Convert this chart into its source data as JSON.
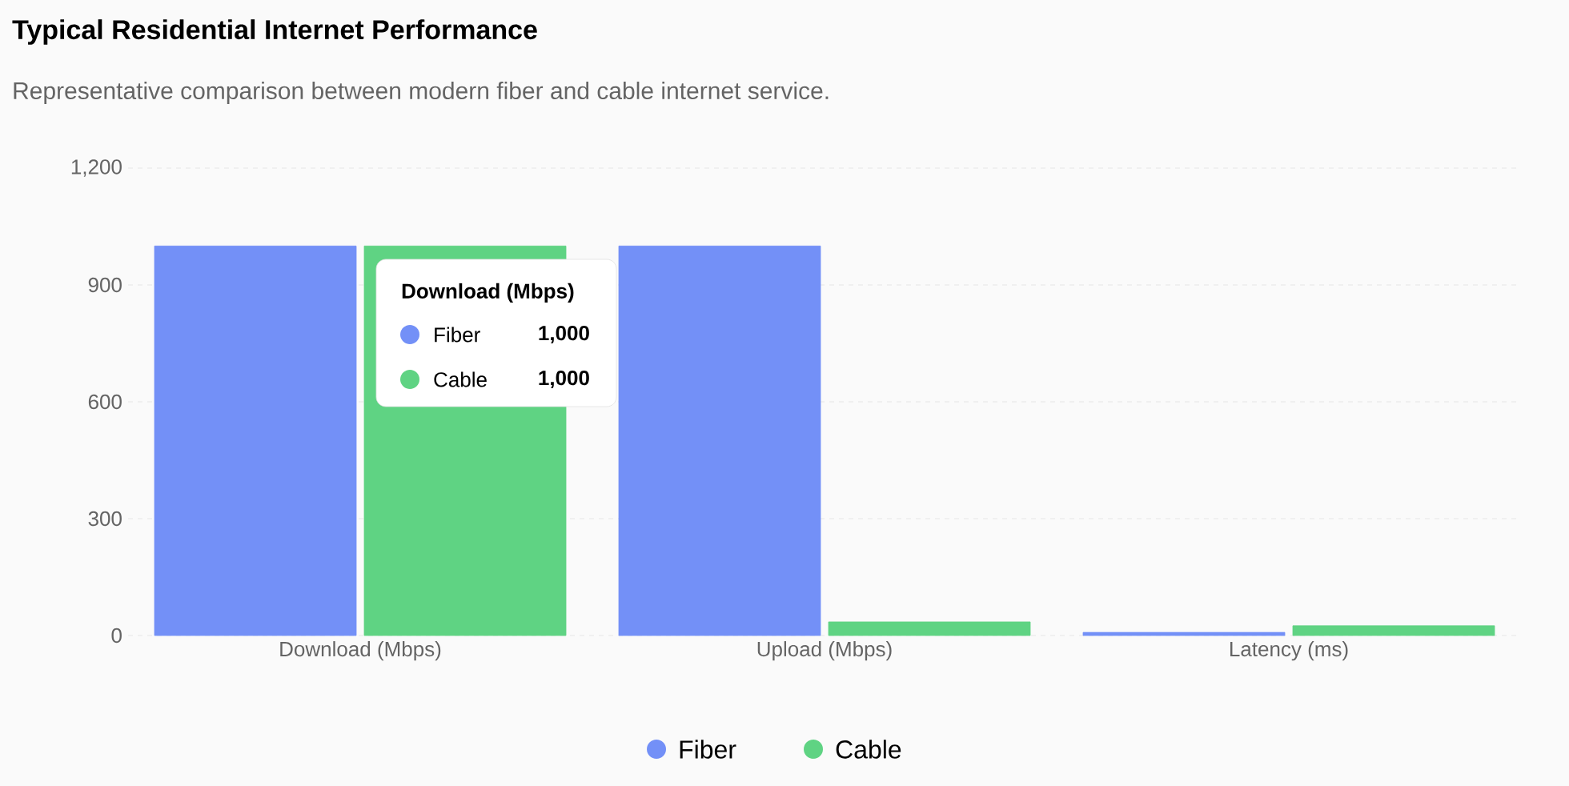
{
  "chart_data": {
    "type": "bar",
    "title": "Typical Residential Internet Performance",
    "subtitle": "Representative comparison between modern fiber and cable internet service.",
    "categories": [
      "Download (Mbps)",
      "Upload (Mbps)",
      "Latency (ms)"
    ],
    "series": [
      {
        "name": "Fiber",
        "color": "#7390f7",
        "values": [
          1000,
          1000,
          8
        ]
      },
      {
        "name": "Cable",
        "color": "#5fd383",
        "values": [
          1000,
          35,
          25
        ]
      }
    ],
    "annotations": [
      "Download (Mbps)",
      "Fiber",
      "1,000",
      "Cable",
      "1,000"
    ],
    "ylim": [
      0,
      1200
    ],
    "yticks": [
      0,
      300,
      600,
      900,
      {
        "value": 1200,
        "label": "1,200"
      }
    ],
    "grid": "y",
    "legend": "bottom"
  }
}
